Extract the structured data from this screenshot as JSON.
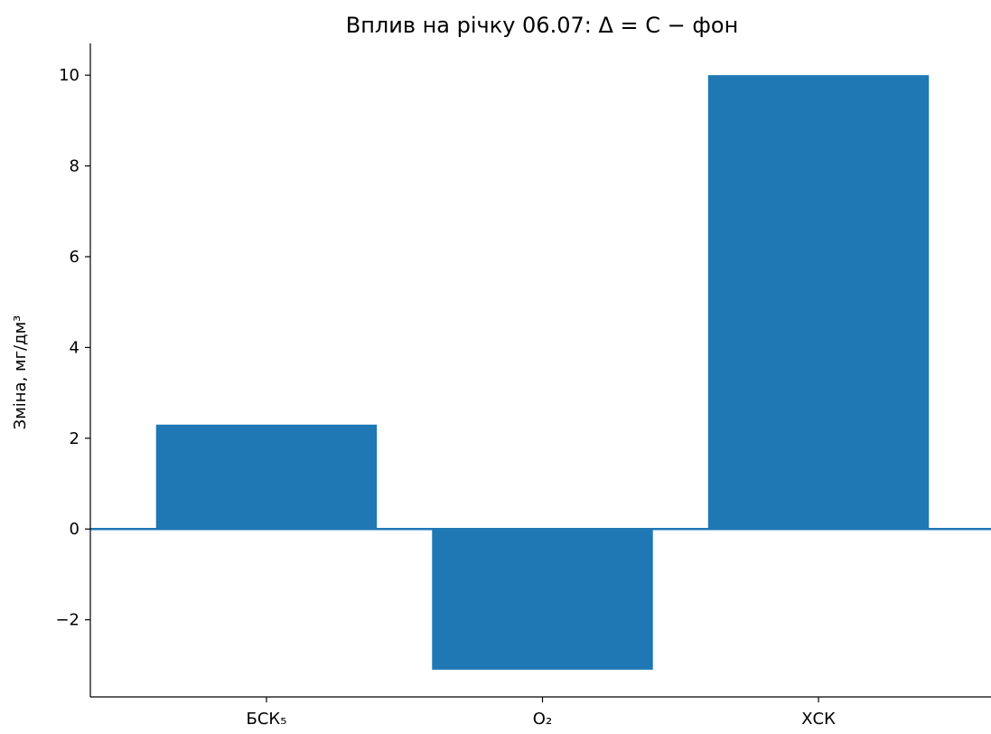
{
  "chart_data": {
    "type": "bar",
    "title": "Вплив на річку 06.07: Δ = C − фон",
    "xlabel": "",
    "ylabel": "Зміна, мг/дм³",
    "categories": [
      "БСК₅",
      "O₂",
      "ХСК"
    ],
    "values": [
      2.3,
      -3.1,
      10.0
    ],
    "ylim": [
      -3.7,
      10.7
    ],
    "yticks": [
      -2,
      0,
      2,
      4,
      6,
      8,
      10
    ],
    "ytick_labels": [
      "−2",
      "0",
      "2",
      "4",
      "6",
      "8",
      "10"
    ],
    "zero_line": true,
    "grid": false,
    "legend": "none",
    "colors": {
      "bar": "#1f77b4",
      "zero_line": "#1f77b4",
      "axis": "#000000"
    }
  }
}
